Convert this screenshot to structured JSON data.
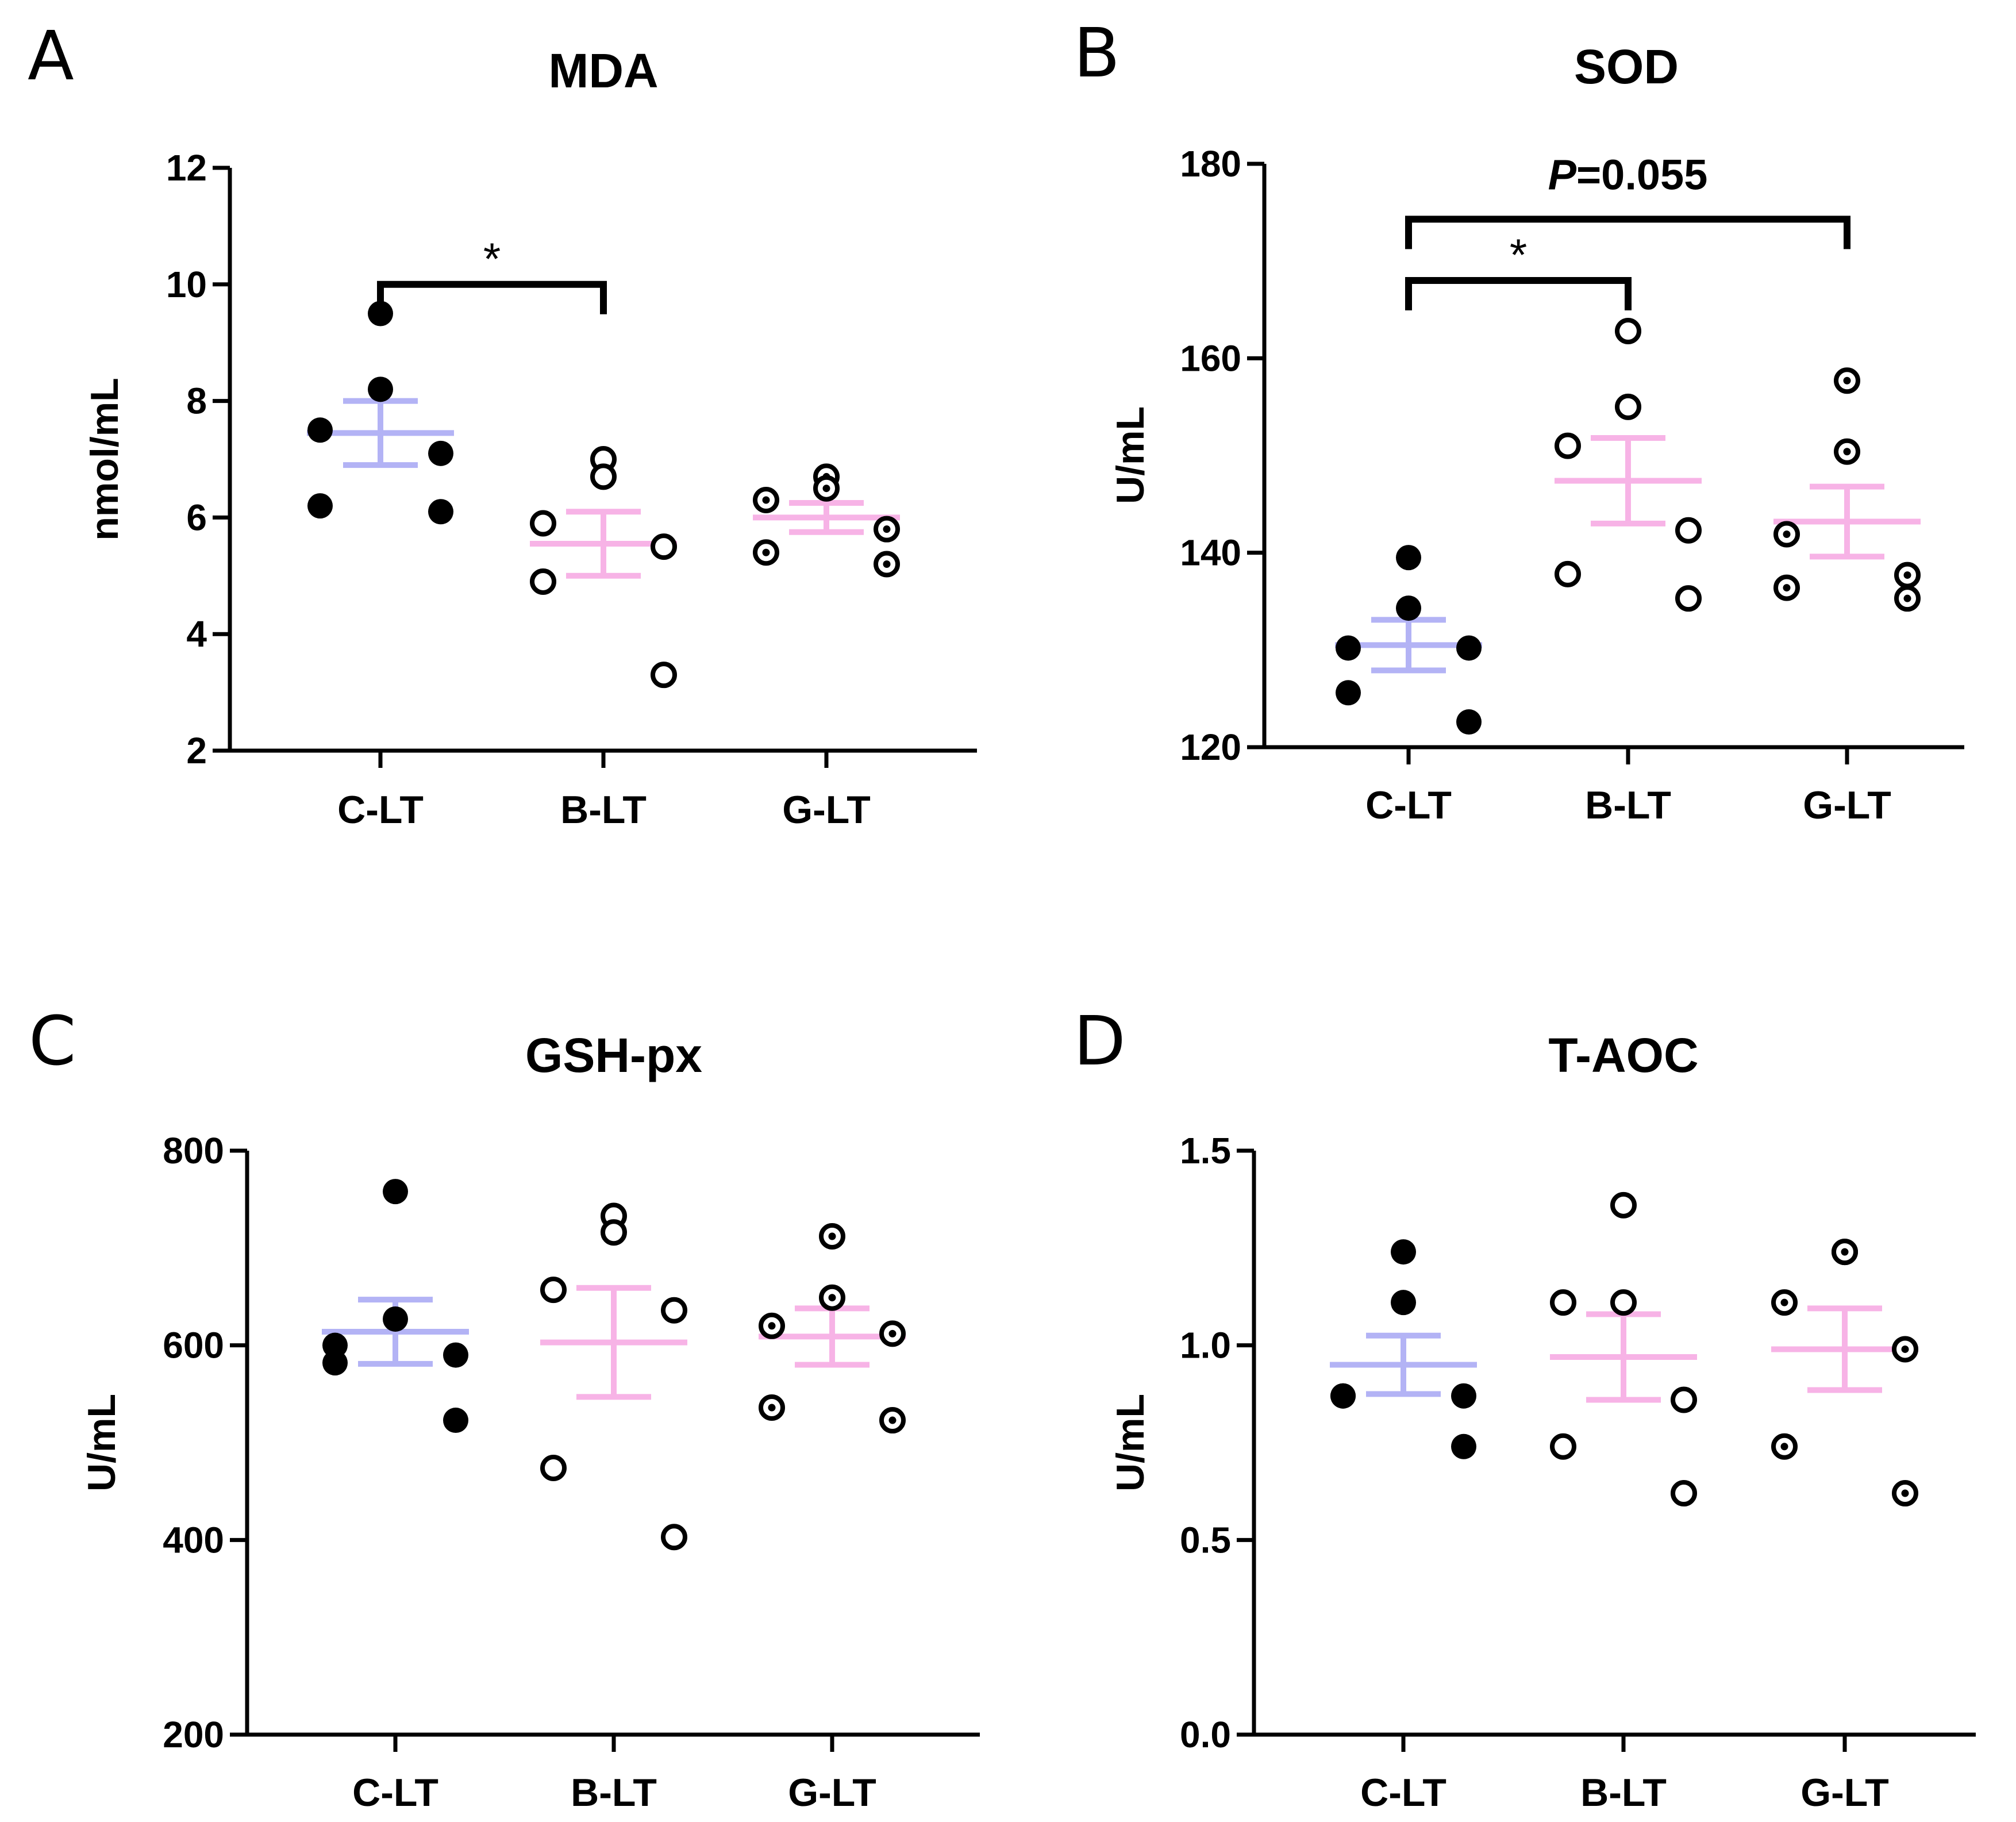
{
  "chart_data": [
    {
      "panel": "A",
      "type": "scatter",
      "title": "MDA",
      "ylabel": "nmol/mL",
      "xlabel": "",
      "categories": [
        "C-LT",
        "B-LT",
        "G-LT"
      ],
      "ylim": [
        2,
        12
      ],
      "yticks": [
        2,
        4,
        6,
        8,
        10,
        12
      ],
      "tick_labels": [
        "2",
        "4",
        "6",
        "8",
        "10",
        "12"
      ],
      "series": [
        {
          "name": "C-LT",
          "marker": "filled",
          "color": "#b3b3f5",
          "mean": 7.45,
          "sem": 0.55,
          "values": [
            9.5,
            8.2,
            7.5,
            7.1,
            6.2,
            6.1
          ]
        },
        {
          "name": "B-LT",
          "marker": "open",
          "color": "#f7b3e6",
          "mean": 5.55,
          "sem": 0.55,
          "values": [
            7.0,
            6.7,
            5.9,
            5.5,
            4.9,
            3.3
          ]
        },
        {
          "name": "G-LT",
          "marker": "dotted",
          "color": "#f7b3e6",
          "mean": 6.0,
          "sem": 0.25,
          "values": [
            6.7,
            6.5,
            6.3,
            5.8,
            5.4,
            5.2
          ]
        }
      ],
      "brackets": [
        {
          "from": "C-LT",
          "to": "B-LT",
          "y": 10.0,
          "label": "*"
        }
      ]
    },
    {
      "panel": "B",
      "type": "scatter",
      "title": "SOD",
      "ylabel": "U/mL",
      "xlabel": "",
      "categories": [
        "C-LT",
        "B-LT",
        "G-LT"
      ],
      "ylim": [
        120,
        180
      ],
      "yticks": [
        120,
        140,
        160,
        180
      ],
      "tick_labels": [
        "120",
        "140",
        "160",
        "180"
      ],
      "series": [
        {
          "name": "C-LT",
          "marker": "filled",
          "color": "#b3b3f5",
          "mean": 130.5,
          "sem": 2.6,
          "values": [
            139.5,
            134.3,
            130.2,
            130.2,
            125.6,
            122.6
          ]
        },
        {
          "name": "B-LT",
          "marker": "open",
          "color": "#f7b3e6",
          "mean": 147.4,
          "sem": 4.4,
          "values": [
            162.8,
            155.0,
            151.0,
            142.3,
            137.8,
            135.3
          ]
        },
        {
          "name": "G-LT",
          "marker": "dotted",
          "color": "#f7b3e6",
          "mean": 143.2,
          "sem": 3.6,
          "values": [
            157.7,
            150.4,
            141.9,
            137.7,
            136.4,
            135.3
          ]
        }
      ],
      "brackets": [
        {
          "from": "C-LT",
          "to": "B-LT",
          "y": 168.0,
          "label": "*"
        },
        {
          "from": "C-LT",
          "to": "G-LT",
          "y": 174.3,
          "label": "P=0.055"
        }
      ],
      "pval_italic": "P",
      "pval_rest": "=0.055"
    },
    {
      "panel": "C",
      "type": "scatter",
      "title": "GSH-px",
      "ylabel": "U/mL",
      "xlabel": "",
      "categories": [
        "C-LT",
        "B-LT",
        "G-LT"
      ],
      "ylim": [
        200,
        800
      ],
      "yticks": [
        200,
        400,
        600,
        800
      ],
      "tick_labels": [
        "200",
        "400",
        "600",
        "800"
      ],
      "series": [
        {
          "name": "C-LT",
          "marker": "filled",
          "color": "#b3b3f5",
          "mean": 614,
          "sem": 33,
          "values": [
            758,
            627,
            600,
            590,
            582,
            523
          ]
        },
        {
          "name": "B-LT",
          "marker": "open",
          "color": "#f7b3e6",
          "mean": 603,
          "sem": 56,
          "values": [
            733,
            716,
            657,
            636,
            474,
            403
          ]
        },
        {
          "name": "G-LT",
          "marker": "dotted",
          "color": "#f7b3e6",
          "mean": 609,
          "sem": 29,
          "values": [
            712,
            649,
            620,
            612,
            536,
            523
          ]
        }
      ],
      "brackets": []
    },
    {
      "panel": "D",
      "type": "scatter",
      "title": "T-AOC",
      "ylabel": "U/mL",
      "xlabel": "",
      "categories": [
        "C-LT",
        "B-LT",
        "G-LT"
      ],
      "ylim": [
        0.0,
        1.5
      ],
      "yticks": [
        0.0,
        0.5,
        1.0,
        1.5
      ],
      "tick_labels": [
        "0.0",
        "0.5",
        "1.0",
        "1.5"
      ],
      "series": [
        {
          "name": "C-LT",
          "marker": "filled",
          "color": "#b3b3f5",
          "mean": 0.95,
          "sem": 0.075,
          "values": [
            1.24,
            1.11,
            0.87,
            0.87,
            0.87,
            0.74
          ]
        },
        {
          "name": "B-LT",
          "marker": "open",
          "color": "#f7b3e6",
          "mean": 0.97,
          "sem": 0.11,
          "values": [
            1.36,
            1.11,
            1.11,
            0.86,
            0.74,
            0.62
          ]
        },
        {
          "name": "G-LT",
          "marker": "dotted",
          "color": "#f7b3e6",
          "mean": 0.99,
          "sem": 0.105,
          "values": [
            1.24,
            1.24,
            1.11,
            0.99,
            0.74,
            0.62
          ]
        }
      ],
      "brackets": []
    }
  ]
}
